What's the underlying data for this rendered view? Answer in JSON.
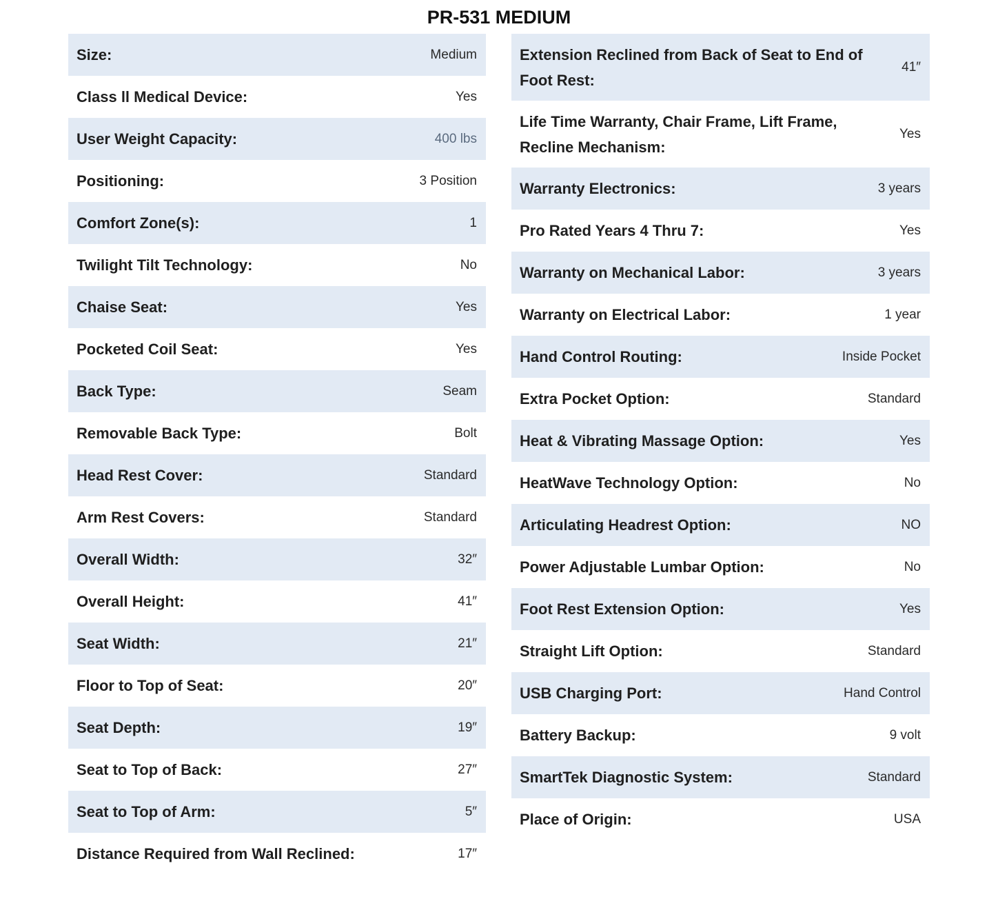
{
  "title": "PR-531 MEDIUM",
  "left_specs": [
    {
      "label": "Size:",
      "value": "Medium"
    },
    {
      "label": "Class ll Medical Device:",
      "value": "Yes"
    },
    {
      "label": "User Weight Capacity:",
      "value": "400 lbs"
    },
    {
      "label": "Positioning:",
      "value": "3 Position"
    },
    {
      "label": "Comfort Zone(s):",
      "value": "1"
    },
    {
      "label": "Twilight Tilt Technology:",
      "value": "No"
    },
    {
      "label": "Chaise Seat:",
      "value": "Yes"
    },
    {
      "label": "Pocketed Coil Seat:",
      "value": "Yes"
    },
    {
      "label": "Back Type:",
      "value": "Seam"
    },
    {
      "label": "Removable Back Type:",
      "value": "Bolt"
    },
    {
      "label": "Head Rest Cover:",
      "value": "Standard"
    },
    {
      "label": "Arm Rest Covers:",
      "value": "Standard"
    },
    {
      "label": "Overall Width:",
      "value": "32″"
    },
    {
      "label": "Overall Height:",
      "value": "41″"
    },
    {
      "label": "Seat Width:",
      "value": "21″"
    },
    {
      "label": "Floor to Top of Seat:",
      "value": "20″"
    },
    {
      "label": "Seat Depth:",
      "value": "19″"
    },
    {
      "label": "Seat to Top of Back:",
      "value": "27″"
    },
    {
      "label": "Seat to Top of Arm:",
      "value": "5″"
    },
    {
      "label": "Distance Required from Wall Reclined:",
      "value": "17″"
    }
  ],
  "right_specs": [
    {
      "label": "Extension Reclined from Back of Seat to End of Foot Rest:",
      "value": "41″"
    },
    {
      "label": "Life Time Warranty, Chair Frame, Lift Frame, Recline Mechanism:",
      "value": "Yes"
    },
    {
      "label": "Warranty Electronics:",
      "value": "3 years"
    },
    {
      "label": "Pro Rated Years 4 Thru 7:",
      "value": "Yes"
    },
    {
      "label": "Warranty on Mechanical Labor:",
      "value": "3 years"
    },
    {
      "label": "Warranty on Electrical Labor:",
      "value": "1 year"
    },
    {
      "label": "Hand Control Routing:",
      "value": "Inside Pocket"
    },
    {
      "label": "Extra Pocket Option:",
      "value": "Standard"
    },
    {
      "label": "Heat & Vibrating Massage Option:",
      "value": "Yes"
    },
    {
      "label": "HeatWave Technology Option:",
      "value": "No"
    },
    {
      "label": "Articulating Headrest Option:",
      "value": "NO"
    },
    {
      "label": "Power Adjustable Lumbar Option:",
      "value": "No"
    },
    {
      "label": "Foot Rest Extension Option:",
      "value": "Yes"
    },
    {
      "label": "Straight Lift Option:",
      "value": "Standard"
    },
    {
      "label": "USB Charging Port:",
      "value": "Hand Control"
    },
    {
      "label": "Battery Backup:",
      "value": "9 volt"
    },
    {
      "label": "SmartTek Diagnostic System:",
      "value": "Standard"
    },
    {
      "label": "Place of Origin:",
      "value": "USA"
    }
  ],
  "colors": {
    "row_stripe": "#e2eaf4",
    "muted_value": "#5b6b7f"
  }
}
